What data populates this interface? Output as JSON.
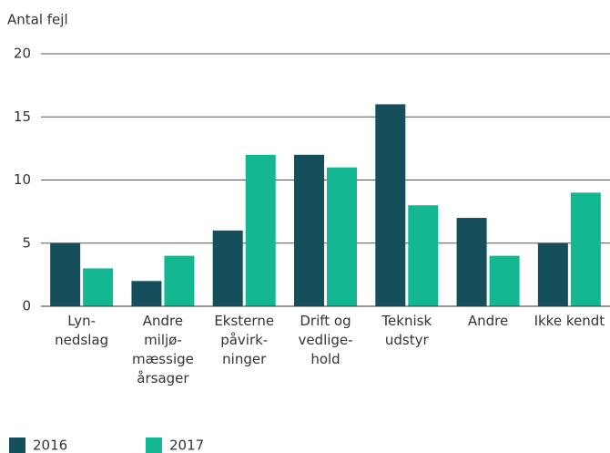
{
  "chart_data": {
    "type": "bar",
    "y_axis_label": "Antal fejl",
    "categories": [
      "Lyn-\nnedslag",
      "Andre\nmiljø-\nmæssige\nårsager",
      "Eksterne\npåvirk-\nninger",
      "Drift og\nvedlige-\nhold",
      "Teknisk\nudstyr",
      "Andre",
      "Ikke kendt"
    ],
    "series": [
      {
        "name": "2016",
        "color": "#154f5c",
        "values": [
          5,
          2,
          6,
          12,
          16,
          7,
          5
        ]
      },
      {
        "name": "2017",
        "color": "#13b893",
        "values": [
          3,
          4,
          12,
          11,
          8,
          4,
          9
        ]
      }
    ],
    "ylim": [
      0,
      20
    ],
    "yticks": [
      0,
      5,
      10,
      15,
      20
    ],
    "grid": true
  }
}
